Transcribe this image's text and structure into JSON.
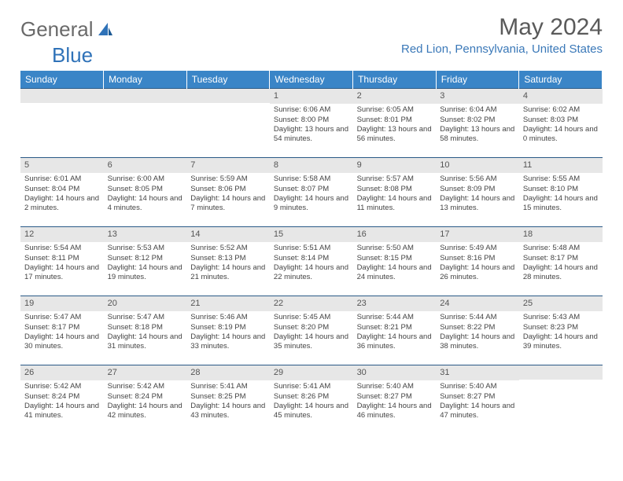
{
  "logo": {
    "text1": "General",
    "text2": "Blue"
  },
  "title": "May 2024",
  "location": "Red Lion, Pennsylvania, United States",
  "colors": {
    "header_bg": "#3a85c7",
    "header_text": "#ffffff",
    "daynum_bg": "#e7e7e7",
    "border": "#2a5a87",
    "location": "#3a78b8"
  },
  "weekdays": [
    "Sunday",
    "Monday",
    "Tuesday",
    "Wednesday",
    "Thursday",
    "Friday",
    "Saturday"
  ],
  "weeks": [
    [
      {
        "n": "",
        "sr": "",
        "ss": "",
        "dl": ""
      },
      {
        "n": "",
        "sr": "",
        "ss": "",
        "dl": ""
      },
      {
        "n": "",
        "sr": "",
        "ss": "",
        "dl": ""
      },
      {
        "n": "1",
        "sr": "Sunrise: 6:06 AM",
        "ss": "Sunset: 8:00 PM",
        "dl": "Daylight: 13 hours and 54 minutes."
      },
      {
        "n": "2",
        "sr": "Sunrise: 6:05 AM",
        "ss": "Sunset: 8:01 PM",
        "dl": "Daylight: 13 hours and 56 minutes."
      },
      {
        "n": "3",
        "sr": "Sunrise: 6:04 AM",
        "ss": "Sunset: 8:02 PM",
        "dl": "Daylight: 13 hours and 58 minutes."
      },
      {
        "n": "4",
        "sr": "Sunrise: 6:02 AM",
        "ss": "Sunset: 8:03 PM",
        "dl": "Daylight: 14 hours and 0 minutes."
      }
    ],
    [
      {
        "n": "5",
        "sr": "Sunrise: 6:01 AM",
        "ss": "Sunset: 8:04 PM",
        "dl": "Daylight: 14 hours and 2 minutes."
      },
      {
        "n": "6",
        "sr": "Sunrise: 6:00 AM",
        "ss": "Sunset: 8:05 PM",
        "dl": "Daylight: 14 hours and 4 minutes."
      },
      {
        "n": "7",
        "sr": "Sunrise: 5:59 AM",
        "ss": "Sunset: 8:06 PM",
        "dl": "Daylight: 14 hours and 7 minutes."
      },
      {
        "n": "8",
        "sr": "Sunrise: 5:58 AM",
        "ss": "Sunset: 8:07 PM",
        "dl": "Daylight: 14 hours and 9 minutes."
      },
      {
        "n": "9",
        "sr": "Sunrise: 5:57 AM",
        "ss": "Sunset: 8:08 PM",
        "dl": "Daylight: 14 hours and 11 minutes."
      },
      {
        "n": "10",
        "sr": "Sunrise: 5:56 AM",
        "ss": "Sunset: 8:09 PM",
        "dl": "Daylight: 14 hours and 13 minutes."
      },
      {
        "n": "11",
        "sr": "Sunrise: 5:55 AM",
        "ss": "Sunset: 8:10 PM",
        "dl": "Daylight: 14 hours and 15 minutes."
      }
    ],
    [
      {
        "n": "12",
        "sr": "Sunrise: 5:54 AM",
        "ss": "Sunset: 8:11 PM",
        "dl": "Daylight: 14 hours and 17 minutes."
      },
      {
        "n": "13",
        "sr": "Sunrise: 5:53 AM",
        "ss": "Sunset: 8:12 PM",
        "dl": "Daylight: 14 hours and 19 minutes."
      },
      {
        "n": "14",
        "sr": "Sunrise: 5:52 AM",
        "ss": "Sunset: 8:13 PM",
        "dl": "Daylight: 14 hours and 21 minutes."
      },
      {
        "n": "15",
        "sr": "Sunrise: 5:51 AM",
        "ss": "Sunset: 8:14 PM",
        "dl": "Daylight: 14 hours and 22 minutes."
      },
      {
        "n": "16",
        "sr": "Sunrise: 5:50 AM",
        "ss": "Sunset: 8:15 PM",
        "dl": "Daylight: 14 hours and 24 minutes."
      },
      {
        "n": "17",
        "sr": "Sunrise: 5:49 AM",
        "ss": "Sunset: 8:16 PM",
        "dl": "Daylight: 14 hours and 26 minutes."
      },
      {
        "n": "18",
        "sr": "Sunrise: 5:48 AM",
        "ss": "Sunset: 8:17 PM",
        "dl": "Daylight: 14 hours and 28 minutes."
      }
    ],
    [
      {
        "n": "19",
        "sr": "Sunrise: 5:47 AM",
        "ss": "Sunset: 8:17 PM",
        "dl": "Daylight: 14 hours and 30 minutes."
      },
      {
        "n": "20",
        "sr": "Sunrise: 5:47 AM",
        "ss": "Sunset: 8:18 PM",
        "dl": "Daylight: 14 hours and 31 minutes."
      },
      {
        "n": "21",
        "sr": "Sunrise: 5:46 AM",
        "ss": "Sunset: 8:19 PM",
        "dl": "Daylight: 14 hours and 33 minutes."
      },
      {
        "n": "22",
        "sr": "Sunrise: 5:45 AM",
        "ss": "Sunset: 8:20 PM",
        "dl": "Daylight: 14 hours and 35 minutes."
      },
      {
        "n": "23",
        "sr": "Sunrise: 5:44 AM",
        "ss": "Sunset: 8:21 PM",
        "dl": "Daylight: 14 hours and 36 minutes."
      },
      {
        "n": "24",
        "sr": "Sunrise: 5:44 AM",
        "ss": "Sunset: 8:22 PM",
        "dl": "Daylight: 14 hours and 38 minutes."
      },
      {
        "n": "25",
        "sr": "Sunrise: 5:43 AM",
        "ss": "Sunset: 8:23 PM",
        "dl": "Daylight: 14 hours and 39 minutes."
      }
    ],
    [
      {
        "n": "26",
        "sr": "Sunrise: 5:42 AM",
        "ss": "Sunset: 8:24 PM",
        "dl": "Daylight: 14 hours and 41 minutes."
      },
      {
        "n": "27",
        "sr": "Sunrise: 5:42 AM",
        "ss": "Sunset: 8:24 PM",
        "dl": "Daylight: 14 hours and 42 minutes."
      },
      {
        "n": "28",
        "sr": "Sunrise: 5:41 AM",
        "ss": "Sunset: 8:25 PM",
        "dl": "Daylight: 14 hours and 43 minutes."
      },
      {
        "n": "29",
        "sr": "Sunrise: 5:41 AM",
        "ss": "Sunset: 8:26 PM",
        "dl": "Daylight: 14 hours and 45 minutes."
      },
      {
        "n": "30",
        "sr": "Sunrise: 5:40 AM",
        "ss": "Sunset: 8:27 PM",
        "dl": "Daylight: 14 hours and 46 minutes."
      },
      {
        "n": "31",
        "sr": "Sunrise: 5:40 AM",
        "ss": "Sunset: 8:27 PM",
        "dl": "Daylight: 14 hours and 47 minutes."
      },
      {
        "n": "",
        "sr": "",
        "ss": "",
        "dl": ""
      }
    ]
  ]
}
